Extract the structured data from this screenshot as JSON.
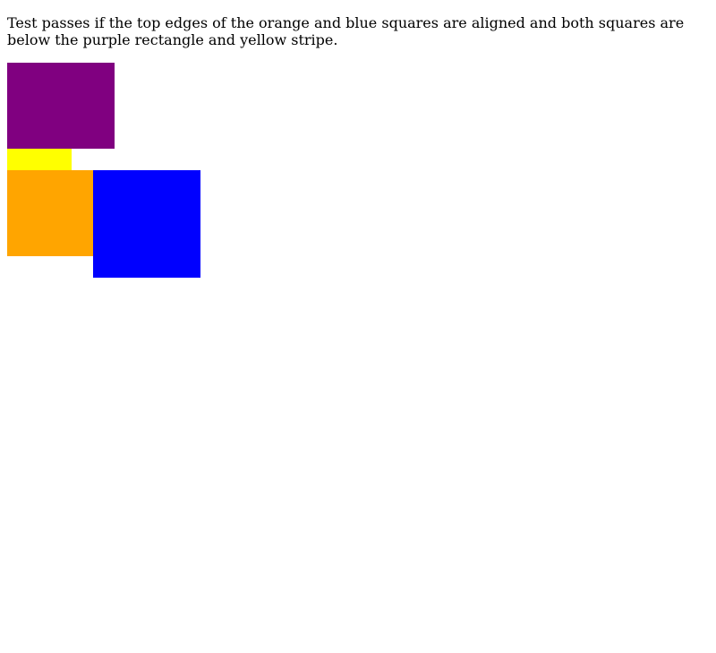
{
  "instructions": "Test passes if the top edges of the orange and blue squares are aligned and both squares are below the purple rectangle and yellow stripe.",
  "colors": {
    "purple": "#800080",
    "yellow": "#ffff00",
    "orange": "#ffa500",
    "blue": "#0000ff"
  }
}
